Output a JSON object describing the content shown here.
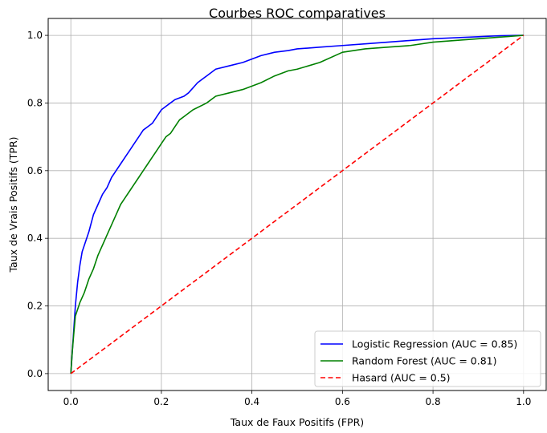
{
  "chart_data": {
    "type": "line",
    "title": "Courbes ROC comparatives",
    "xlabel": "Taux de Faux Positifs (FPR)",
    "ylabel": "Taux de Vrais Positifs (TPR)",
    "xlim": [
      -0.05,
      1.05
    ],
    "ylim": [
      -0.05,
      1.05
    ],
    "xticks": [
      "0.0",
      "0.2",
      "0.4",
      "0.6",
      "0.8",
      "1.0"
    ],
    "yticks": [
      "0.0",
      "0.2",
      "0.4",
      "0.6",
      "0.8",
      "1.0"
    ],
    "grid": true,
    "legend_position": "lower-right",
    "series": [
      {
        "name": "Logistic Regression (AUC = 0.85)",
        "color": "#0000ff",
        "style": "solid",
        "x": [
          0.0,
          0.003,
          0.006,
          0.01,
          0.015,
          0.02,
          0.025,
          0.03,
          0.04,
          0.05,
          0.06,
          0.07,
          0.08,
          0.09,
          0.1,
          0.11,
          0.12,
          0.13,
          0.14,
          0.15,
          0.16,
          0.17,
          0.18,
          0.19,
          0.2,
          0.21,
          0.22,
          0.23,
          0.24,
          0.25,
          0.26,
          0.28,
          0.3,
          0.32,
          0.35,
          0.38,
          0.4,
          0.42,
          0.45,
          0.48,
          0.5,
          0.55,
          0.6,
          0.65,
          0.7,
          0.75,
          0.8,
          0.85,
          0.9,
          0.95,
          1.0
        ],
        "y": [
          0.0,
          0.06,
          0.12,
          0.2,
          0.27,
          0.32,
          0.36,
          0.38,
          0.42,
          0.47,
          0.5,
          0.53,
          0.55,
          0.58,
          0.6,
          0.62,
          0.64,
          0.66,
          0.68,
          0.7,
          0.72,
          0.73,
          0.74,
          0.76,
          0.78,
          0.79,
          0.8,
          0.81,
          0.815,
          0.82,
          0.83,
          0.86,
          0.88,
          0.9,
          0.91,
          0.92,
          0.93,
          0.94,
          0.95,
          0.955,
          0.96,
          0.965,
          0.97,
          0.975,
          0.98,
          0.985,
          0.99,
          0.993,
          0.996,
          0.999,
          1.0
        ]
      },
      {
        "name": "Random Forest (AUC = 0.81)",
        "color": "#008000",
        "style": "solid",
        "x": [
          0.0,
          0.003,
          0.006,
          0.01,
          0.015,
          0.02,
          0.03,
          0.04,
          0.05,
          0.06,
          0.07,
          0.08,
          0.09,
          0.1,
          0.11,
          0.12,
          0.13,
          0.14,
          0.15,
          0.16,
          0.17,
          0.18,
          0.19,
          0.2,
          0.21,
          0.22,
          0.23,
          0.24,
          0.25,
          0.27,
          0.3,
          0.32,
          0.35,
          0.38,
          0.4,
          0.42,
          0.45,
          0.48,
          0.5,
          0.55,
          0.6,
          0.65,
          0.7,
          0.75,
          0.8,
          0.85,
          0.9,
          0.95,
          1.0
        ],
        "y": [
          0.0,
          0.06,
          0.11,
          0.17,
          0.19,
          0.21,
          0.24,
          0.28,
          0.31,
          0.35,
          0.38,
          0.41,
          0.44,
          0.47,
          0.5,
          0.52,
          0.54,
          0.56,
          0.58,
          0.6,
          0.62,
          0.64,
          0.66,
          0.68,
          0.7,
          0.71,
          0.73,
          0.75,
          0.76,
          0.78,
          0.8,
          0.82,
          0.83,
          0.84,
          0.85,
          0.86,
          0.88,
          0.895,
          0.9,
          0.92,
          0.95,
          0.96,
          0.965,
          0.97,
          0.98,
          0.985,
          0.99,
          0.995,
          1.0
        ]
      },
      {
        "name": "Hasard (AUC = 0.5)",
        "color": "#ff0000",
        "style": "dashed",
        "x": [
          0.0,
          1.0
        ],
        "y": [
          0.0,
          1.0
        ]
      }
    ]
  }
}
